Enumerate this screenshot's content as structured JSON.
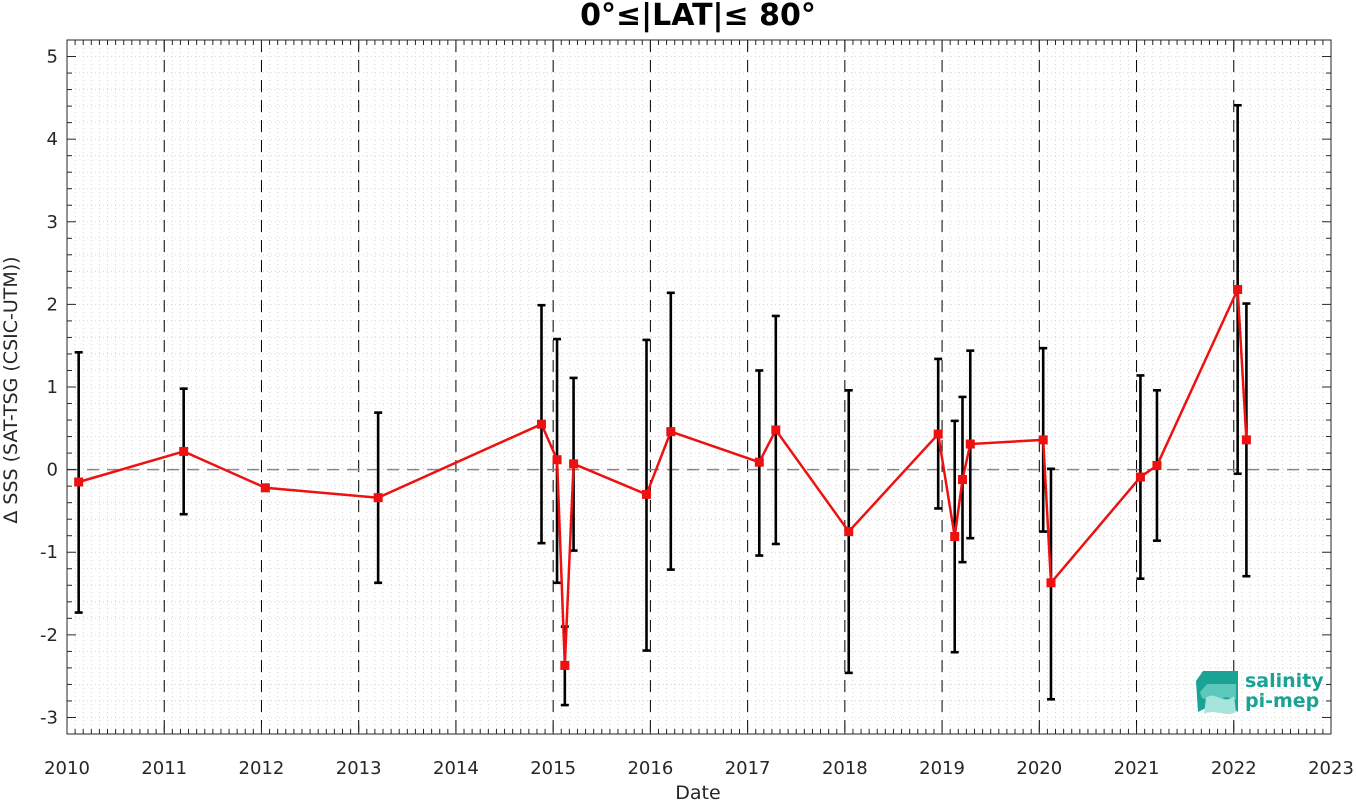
{
  "chart_data": {
    "type": "line",
    "title": "0°≤|LAT|≤ 80°",
    "xlabel": "Date",
    "ylabel": "Δ SSS (SAT-TSG (CSIC-UTM))",
    "xlim": [
      2010,
      2023
    ],
    "ylim": [
      -3.2,
      5.2
    ],
    "xticks": [
      2010,
      2011,
      2012,
      2013,
      2014,
      2015,
      2016,
      2017,
      2018,
      2019,
      2020,
      2021,
      2022,
      2023
    ],
    "xtick_labels": [
      "2010",
      "2011",
      "2012",
      "2013",
      "2014",
      "2015",
      "2016",
      "2017",
      "2018",
      "2019",
      "2020",
      "2021",
      "2022",
      "2023"
    ],
    "yticks": [
      -3,
      -2,
      -1,
      0,
      1,
      2,
      3,
      4,
      5
    ],
    "ytick_labels": [
      "-3",
      "-2",
      "-1",
      "0",
      "1",
      "2",
      "3",
      "4",
      "5"
    ],
    "grid": "minor dotted",
    "year_separators": [
      2011,
      2012,
      2013,
      2014,
      2015,
      2016,
      2017,
      2018,
      2019,
      2020,
      2021,
      2022
    ],
    "zero_line": 0,
    "series": [
      {
        "color": "#ee1111",
        "marker": "square",
        "x": [
          2010.12,
          2011.2,
          2012.04,
          2013.2,
          2014.88,
          2015.04,
          2015.12,
          2015.21,
          2015.96,
          2016.21,
          2017.12,
          2017.29,
          2018.04,
          2018.96,
          2019.13,
          2019.21,
          2019.29,
          2020.04,
          2020.12,
          2021.04,
          2021.21,
          2022.04,
          2022.13
        ],
        "y": [
          -0.15,
          0.22,
          -0.22,
          -0.34,
          0.55,
          0.12,
          -2.37,
          0.07,
          -0.3,
          0.46,
          0.09,
          0.48,
          -0.75,
          0.43,
          -0.81,
          -0.12,
          0.31,
          0.36,
          -1.37,
          -0.09,
          0.05,
          2.18,
          0.36
        ],
        "err_low": [
          -1.73,
          -0.54,
          null,
          -1.37,
          -0.89,
          -1.37,
          -2.85,
          -0.98,
          -2.19,
          -1.21,
          -1.04,
          -0.9,
          -2.46,
          -0.47,
          -2.21,
          -1.12,
          -0.83,
          -0.75,
          -2.78,
          -1.32,
          -0.86,
          -0.05,
          -1.29
        ],
        "err_high": [
          1.42,
          0.98,
          null,
          0.69,
          1.99,
          1.58,
          -1.9,
          1.11,
          1.57,
          2.14,
          1.2,
          1.86,
          0.96,
          1.34,
          0.59,
          0.88,
          1.44,
          1.47,
          0.01,
          1.14,
          0.96,
          4.41,
          2.01
        ]
      }
    ]
  },
  "logo": {
    "line1": "salinity",
    "line2": "pi-mep",
    "color": "#1aa395"
  }
}
